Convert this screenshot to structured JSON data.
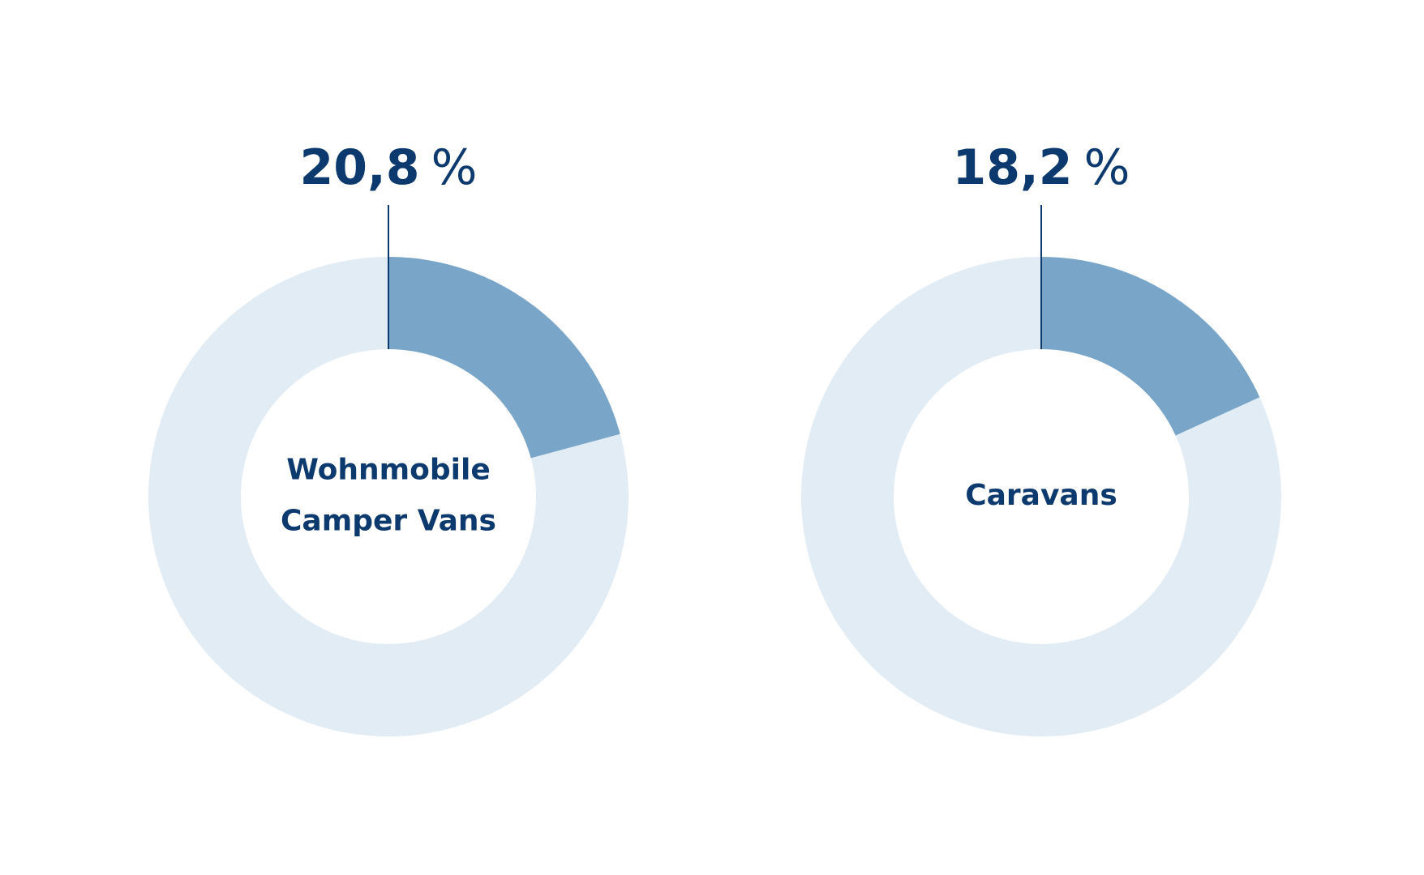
{
  "chart_data": [
    {
      "type": "donut",
      "values": [
        20.8,
        79.2
      ],
      "colors": [
        "#78a5c8",
        "#e1ecf5"
      ],
      "highlight_label": "20,8",
      "unit": "%",
      "center_label": [
        "Wohnmobile",
        "Camper Vans"
      ],
      "text_color": "#0d3a6e"
    },
    {
      "type": "donut",
      "values": [
        18.2,
        81.8
      ],
      "colors": [
        "#78a5c8",
        "#e1ecf5"
      ],
      "highlight_label": "18,2",
      "unit": "%",
      "center_label": [
        "Caravans"
      ],
      "text_color": "#0d3a6e"
    }
  ]
}
